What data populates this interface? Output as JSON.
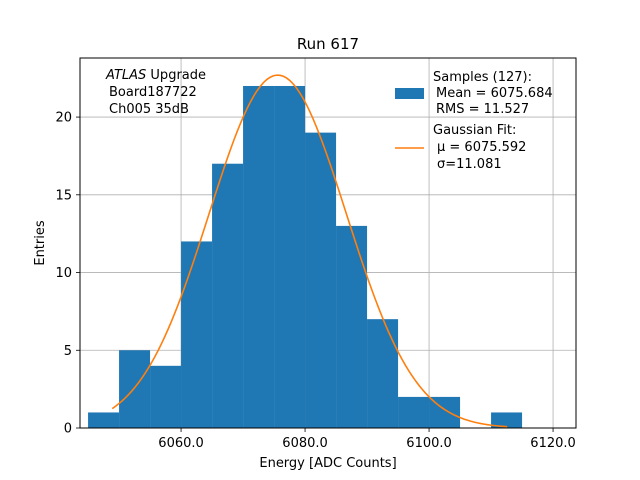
{
  "chart_data": {
    "type": "bar",
    "title": "Run 617",
    "xlabel": "Energy [ADC Counts]",
    "ylabel": "Entries",
    "xlim": [
      6043.7,
      6123.7
    ],
    "ylim": [
      0,
      23.8
    ],
    "grid": true,
    "xticks": [
      6060,
      6080,
      6100,
      6120
    ],
    "xtick_labels": [
      "6060.0",
      "6080.0",
      "6100.0",
      "6120.0"
    ],
    "yticks": [
      0,
      5,
      10,
      15,
      20
    ],
    "ytick_labels": [
      "0",
      "5",
      "10",
      "15",
      "20"
    ],
    "bin_edges": [
      6045,
      6050,
      6055,
      6060,
      6065,
      6070,
      6075,
      6080,
      6085,
      6090,
      6095,
      6100,
      6105,
      6110,
      6115
    ],
    "counts": [
      1,
      5,
      4,
      12,
      17,
      22,
      22,
      19,
      13,
      7,
      2,
      2,
      0,
      1
    ],
    "series": [
      {
        "name": "Samples (127):",
        "type": "histogram",
        "color": "#1f77b4"
      },
      {
        "name": "Gaussian Fit:",
        "type": "line",
        "color": "#ff7f0e",
        "mu": 6075.592,
        "sigma": 11.081,
        "amplitude": 22.7,
        "x_range": [
          6048.9,
          6112.6
        ]
      }
    ],
    "annotation": {
      "experiment": "ATLAS",
      "upgrade": "Upgrade",
      "board": "Board187722",
      "channel": "Ch005 35dB"
    },
    "legend": {
      "placement": "top-right",
      "samples_label": "Samples (127):",
      "samples_mean": "Mean = 6075.684",
      "samples_rms": "RMS = 11.527",
      "fit_label": "Gaussian Fit:",
      "fit_mu": "μ = 6075.592",
      "fit_sigma": "σ=11.081"
    }
  }
}
